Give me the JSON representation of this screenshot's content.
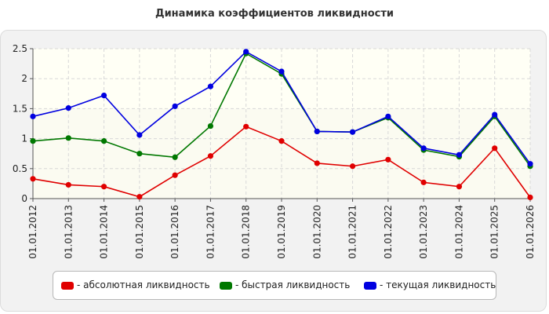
{
  "chart_data": {
    "type": "line",
    "title": "Динамика коэффициентов ликвидности",
    "xlabel": "",
    "ylabel": "",
    "ylim": [
      0,
      2.5
    ],
    "y_ticks": [
      "0",
      "0.5",
      "1",
      "1.5",
      "2",
      "2.5"
    ],
    "grid": true,
    "legend_position": "bottom",
    "categories": [
      "01.01.2012",
      "01.01.2013",
      "01.01.2014",
      "01.01.2015",
      "01.01.2016",
      "01.01.2017",
      "01.01.2018",
      "01.01.2019",
      "01.01.2020",
      "01.01.2021",
      "01.01.2022",
      "01.01.2023",
      "01.01.2024",
      "01.01.2025",
      "01.01.2026"
    ],
    "series": [
      {
        "name": "- абсолютная ликвидность",
        "color": "#e00000",
        "values": [
          0.33,
          0.23,
          0.2,
          0.03,
          0.39,
          0.71,
          1.2,
          0.96,
          0.59,
          0.54,
          0.65,
          0.27,
          0.2,
          0.84,
          0.02
        ]
      },
      {
        "name": "- быстрая ликвидность",
        "color": "#007800",
        "values": [
          0.96,
          1.01,
          0.96,
          0.75,
          0.69,
          1.21,
          2.42,
          2.08,
          1.12,
          1.11,
          1.35,
          0.81,
          0.7,
          1.37,
          0.54
        ]
      },
      {
        "name": "- текущая ликвидность",
        "color": "#0000e0",
        "values": [
          1.37,
          1.51,
          1.72,
          1.06,
          1.54,
          1.87,
          2.45,
          2.12,
          1.12,
          1.11,
          1.37,
          0.84,
          0.73,
          1.4,
          0.58
        ]
      }
    ]
  }
}
